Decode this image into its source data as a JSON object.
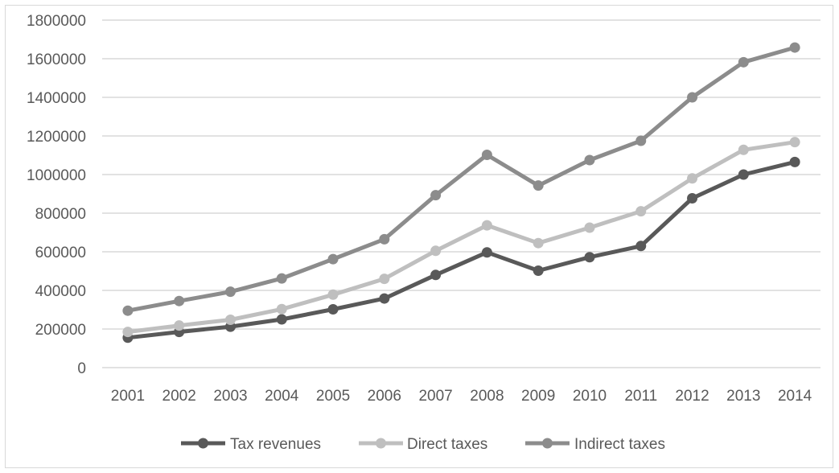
{
  "chart_data": {
    "type": "line",
    "title": "",
    "xlabel": "",
    "ylabel": "",
    "ylim": [
      0,
      1800000
    ],
    "y_ticks": [
      "0",
      "200000",
      "400000",
      "600000",
      "800000",
      "1000000",
      "1200000",
      "1400000",
      "1600000",
      "1800000"
    ],
    "categories": [
      "2001",
      "2002",
      "2003",
      "2004",
      "2005",
      "2006",
      "2007",
      "2008",
      "2009",
      "2010",
      "2011",
      "2012",
      "2013",
      "2014"
    ],
    "grid": true,
    "legend_position": "bottom",
    "series": [
      {
        "name": "Tax revenues",
        "color": "#595959",
        "values": [
          155000,
          185000,
          212000,
          250000,
          302000,
          358000,
          480000,
          597000,
          502000,
          572000,
          630000,
          877000,
          1000000,
          1065000
        ]
      },
      {
        "name": "Direct taxes",
        "color": "#bfbfbf",
        "values": [
          185000,
          218000,
          248000,
          303000,
          378000,
          460000,
          605000,
          737000,
          645000,
          725000,
          810000,
          980000,
          1128000,
          1168000
        ]
      },
      {
        "name": "Indirect taxes",
        "color": "#8c8c8c",
        "values": [
          295000,
          345000,
          393000,
          462000,
          562000,
          665000,
          893000,
          1102000,
          943000,
          1075000,
          1175000,
          1400000,
          1582000,
          1658000
        ]
      }
    ]
  }
}
